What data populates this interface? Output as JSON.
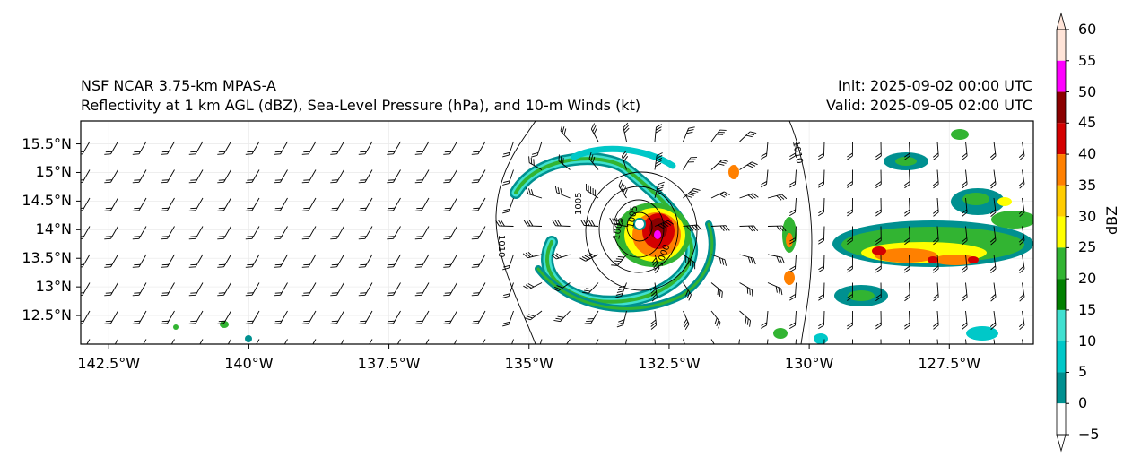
{
  "title": {
    "model": "NSF NCAR 3.75-km MPAS-A",
    "fields": "Reflectivity at 1 km AGL (dBZ), Sea-Level Pressure (hPa), and 10-m Winds (kt)",
    "init": "Init: 2025-09-02 00:00 UTC",
    "valid": "Valid: 2025-09-05 02:00 UTC"
  },
  "map": {
    "lon_range": [
      -143,
      -126
    ],
    "lat_range": [
      12.0,
      15.9
    ],
    "lat_ticks": [
      {
        "value": 15.5,
        "label": "15.5°N"
      },
      {
        "value": 15.0,
        "label": "15°N"
      },
      {
        "value": 14.5,
        "label": "14.5°N"
      },
      {
        "value": 14.0,
        "label": "14°N"
      },
      {
        "value": 13.5,
        "label": "13.5°N"
      },
      {
        "value": 13.0,
        "label": "13°N"
      },
      {
        "value": 12.5,
        "label": "12.5°N"
      }
    ],
    "lon_ticks": [
      {
        "value": -142.5,
        "label": "142.5°W"
      },
      {
        "value": -140.0,
        "label": "140°W"
      },
      {
        "value": -137.5,
        "label": "137.5°W"
      },
      {
        "value": -135.0,
        "label": "135°W"
      },
      {
        "value": -132.5,
        "label": "132.5°W"
      },
      {
        "value": -130.0,
        "label": "130°W"
      },
      {
        "value": -127.5,
        "label": "127.5°W"
      }
    ],
    "storm_center": {
      "lon": -132.9,
      "lat": 14.0
    },
    "contour_labels": [
      "1010",
      "1010",
      "1000",
      "1005",
      "1005",
      "1005"
    ]
  },
  "colorbar": {
    "label": "dBZ",
    "ticks": [
      "60",
      "55",
      "50",
      "45",
      "40",
      "35",
      "30",
      "25",
      "20",
      "15",
      "10",
      "5",
      "0",
      "−5"
    ],
    "colors": [
      "#ffe4d8",
      "#ff00ff",
      "#8b0000",
      "#d40000",
      "#ff8000",
      "#ffcc00",
      "#ffff00",
      "#32b432",
      "#008000",
      "#40e0d0",
      "#00c8c8",
      "#009090",
      "#ffffff"
    ],
    "levels": [
      60,
      55,
      50,
      45,
      40,
      35,
      30,
      25,
      20,
      15,
      10,
      5,
      0,
      -5
    ]
  }
}
